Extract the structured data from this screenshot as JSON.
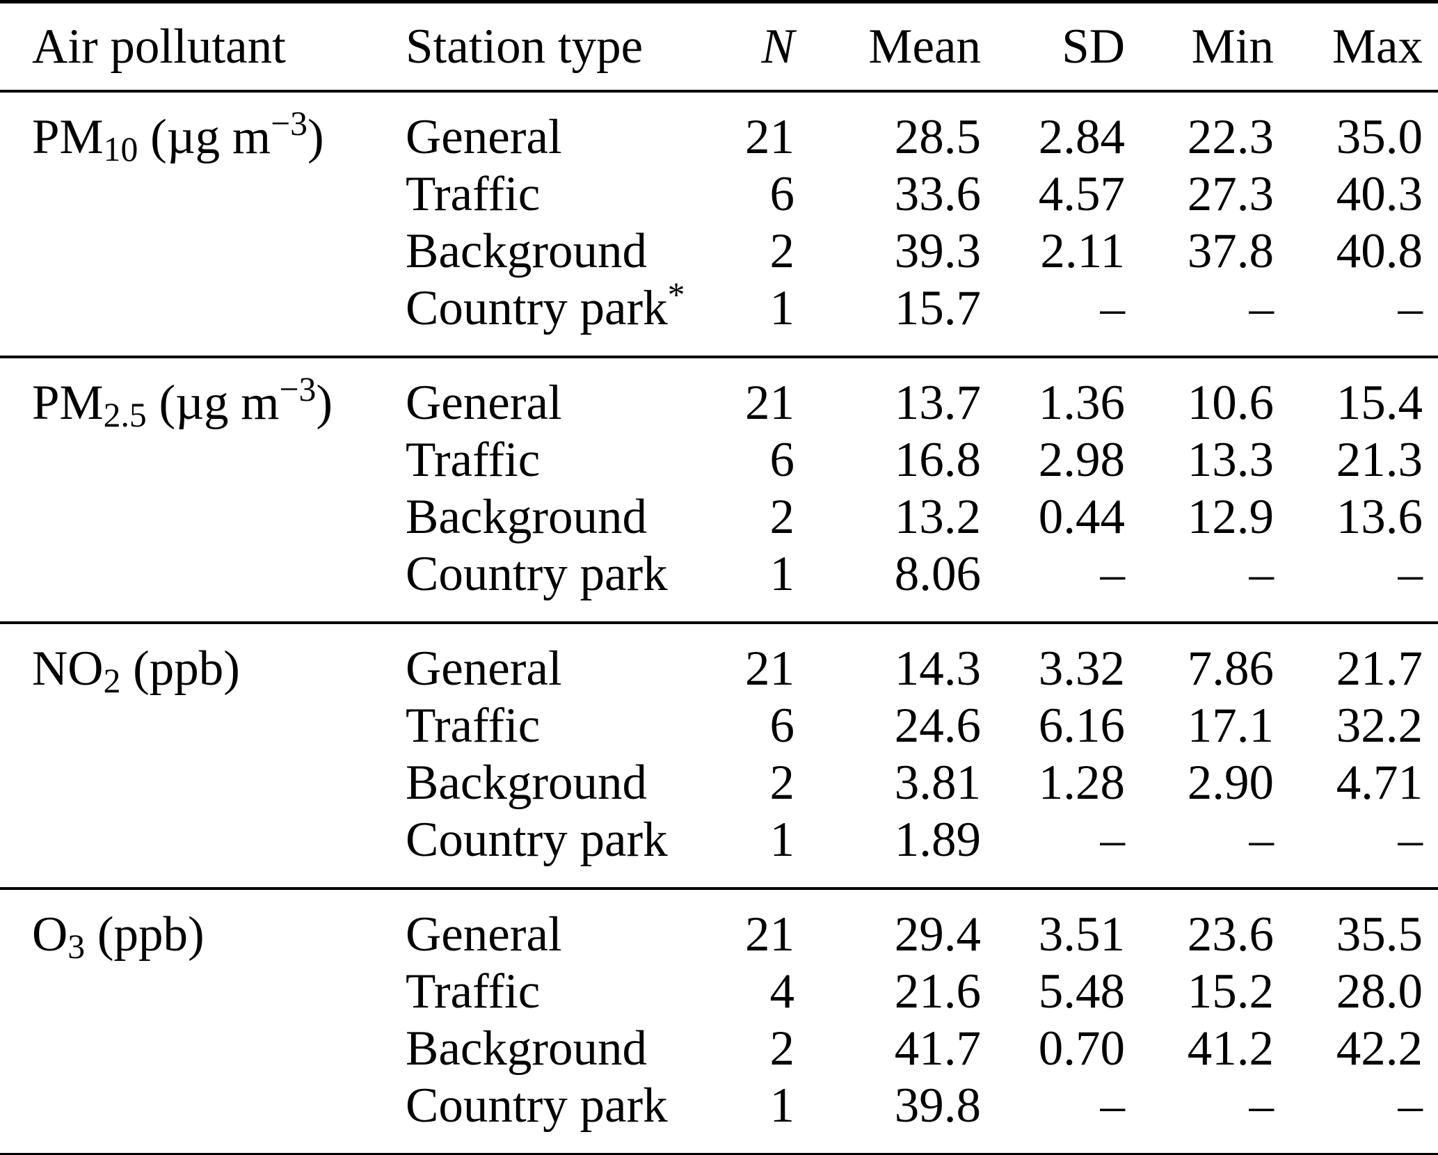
{
  "table": {
    "headers": {
      "air_pollutant": "Air pollutant",
      "station_type": "Station type",
      "n": "N",
      "mean": "Mean",
      "sd": "SD",
      "min": "Min",
      "max": "Max"
    },
    "groups": [
      {
        "label": {
          "base": "PM",
          "sub": "10",
          "mid": " (µg m",
          "sup": "−3",
          "end": ")"
        },
        "rows": [
          {
            "station": "General",
            "marker": "",
            "n": "21",
            "mean": "28.5",
            "sd": "2.84",
            "min": "22.3",
            "max": "35.0"
          },
          {
            "station": "Traffic",
            "marker": "",
            "n": "6",
            "mean": "33.6",
            "sd": "4.57",
            "min": "27.3",
            "max": "40.3"
          },
          {
            "station": "Background",
            "marker": "",
            "n": "2",
            "mean": "39.3",
            "sd": "2.11",
            "min": "37.8",
            "max": "40.8"
          },
          {
            "station": "Country park",
            "marker": "*",
            "n": "1",
            "mean": "15.7",
            "sd": "–",
            "min": "–",
            "max": "–"
          }
        ]
      },
      {
        "label": {
          "base": "PM",
          "sub": "2.5",
          "mid": " (µg m",
          "sup": "−3",
          "end": ")"
        },
        "rows": [
          {
            "station": "General",
            "marker": "",
            "n": "21",
            "mean": "13.7",
            "sd": "1.36",
            "min": "10.6",
            "max": "15.4"
          },
          {
            "station": "Traffic",
            "marker": "",
            "n": "6",
            "mean": "16.8",
            "sd": "2.98",
            "min": "13.3",
            "max": "21.3"
          },
          {
            "station": "Background",
            "marker": "",
            "n": "2",
            "mean": "13.2",
            "sd": "0.44",
            "min": "12.9",
            "max": "13.6"
          },
          {
            "station": "Country park",
            "marker": "",
            "n": "1",
            "mean": "8.06",
            "sd": "–",
            "min": "–",
            "max": "–"
          }
        ]
      },
      {
        "label": {
          "base": "NO",
          "sub": "2",
          "mid": " (ppb)",
          "sup": "",
          "end": ""
        },
        "rows": [
          {
            "station": "General",
            "marker": "",
            "n": "21",
            "mean": "14.3",
            "sd": "3.32",
            "min": "7.86",
            "max": "21.7"
          },
          {
            "station": "Traffic",
            "marker": "",
            "n": "6",
            "mean": "24.6",
            "sd": "6.16",
            "min": "17.1",
            "max": "32.2"
          },
          {
            "station": "Background",
            "marker": "",
            "n": "2",
            "mean": "3.81",
            "sd": "1.28",
            "min": "2.90",
            "max": "4.71"
          },
          {
            "station": "Country park",
            "marker": "",
            "n": "1",
            "mean": "1.89",
            "sd": "–",
            "min": "–",
            "max": "–"
          }
        ]
      },
      {
        "label": {
          "base": "O",
          "sub": "3",
          "mid": " (ppb)",
          "sup": "",
          "end": ""
        },
        "rows": [
          {
            "station": "General",
            "marker": "",
            "n": "21",
            "mean": "29.4",
            "sd": "3.51",
            "min": "23.6",
            "max": "35.5"
          },
          {
            "station": "Traffic",
            "marker": "",
            "n": "4",
            "mean": "21.6",
            "sd": "5.48",
            "min": "15.2",
            "max": "28.0"
          },
          {
            "station": "Background",
            "marker": "",
            "n": "2",
            "mean": "41.7",
            "sd": "0.70",
            "min": "41.2",
            "max": "42.2"
          },
          {
            "station": "Country park",
            "marker": "",
            "n": "1",
            "mean": "39.8",
            "sd": "–",
            "min": "–",
            "max": "–"
          }
        ]
      }
    ]
  }
}
